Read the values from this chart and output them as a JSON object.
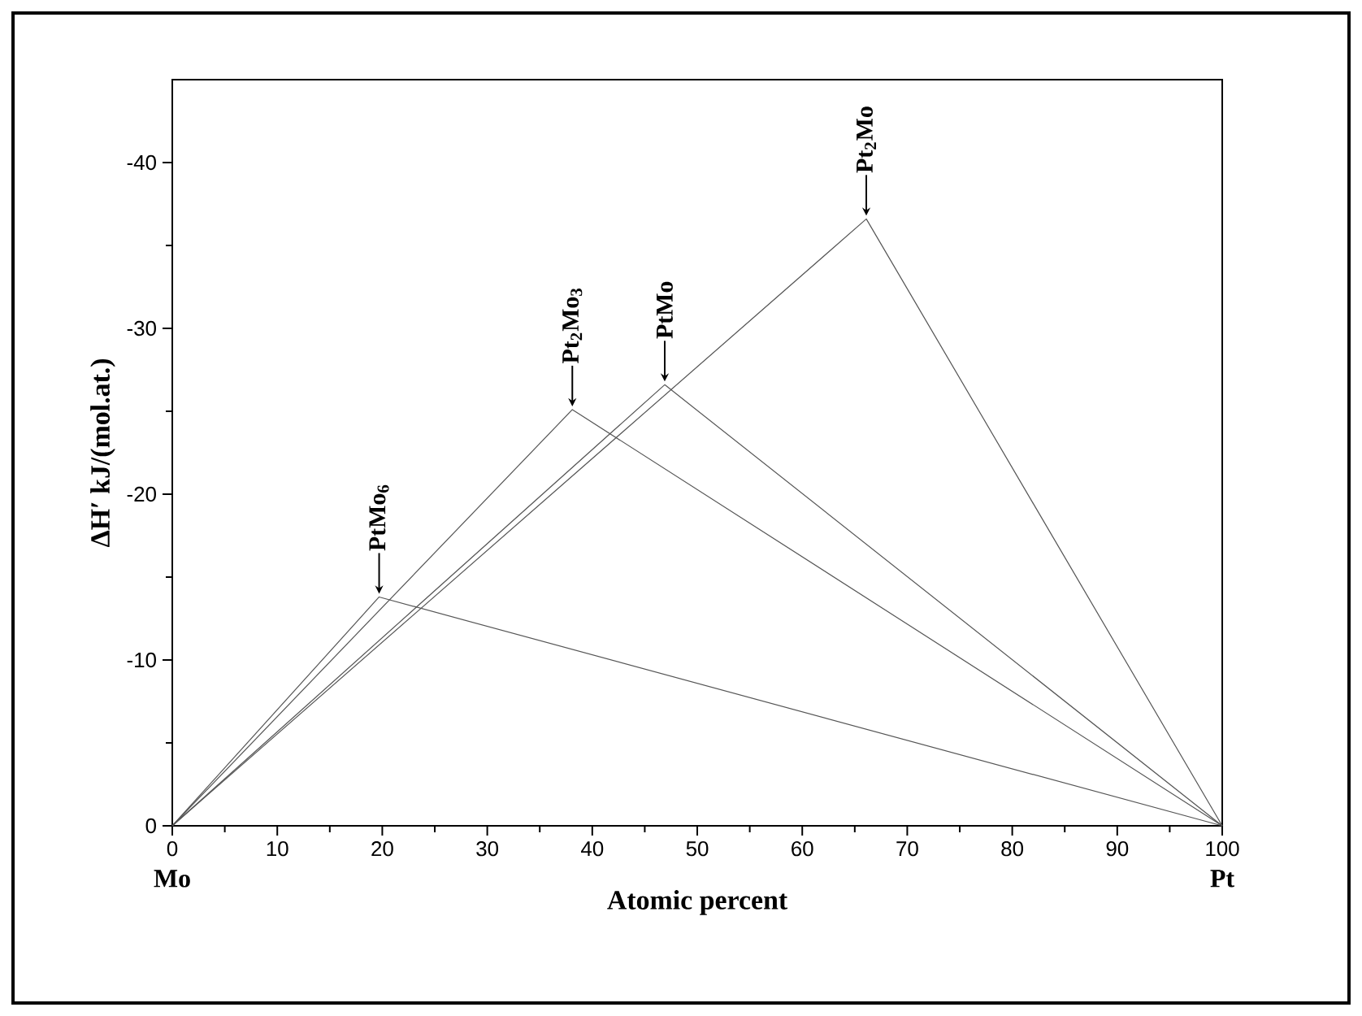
{
  "chart_data": {
    "type": "line",
    "xlabel": "Atomic percent",
    "ylabel": "ΔH′ kJ/(mol.at.)",
    "xlim": [
      0,
      100
    ],
    "xticks": [
      0,
      10,
      20,
      30,
      40,
      50,
      60,
      70,
      80,
      90,
      100
    ],
    "ylim": [
      0,
      -45
    ],
    "yticks": [
      0,
      -10,
      -20,
      -30,
      -40
    ],
    "marker": "none",
    "line_style": "solid",
    "series": [
      {
        "color": "#555555",
        "x": [
          0,
          19.7,
          100
        ],
        "values": [
          0,
          -13.8,
          0
        ]
      },
      {
        "color": "#555555",
        "x": [
          0,
          38.1,
          100
        ],
        "values": [
          0,
          -25.1,
          0
        ]
      },
      {
        "color": "#555555",
        "x": [
          0,
          46.9,
          100
        ],
        "values": [
          0,
          -26.6,
          0
        ]
      },
      {
        "color": "#555555",
        "x": [
          0,
          66.1,
          100
        ],
        "values": [
          0,
          -36.6,
          0
        ]
      }
    ],
    "annotations": [
      {
        "text": "PtMo$_{6}$",
        "x": 19.7,
        "y": -13.8
      },
      {
        "text": "Pt$_{2}$Mo$_{3}$",
        "x": 38.1,
        "y": -25.1
      },
      {
        "text": "PtMo",
        "x": 46.9,
        "y": -26.6
      },
      {
        "text": "Pt$_{2}$Mo",
        "x": 66.1,
        "y": -36.6
      },
      "Mo",
      "Pt"
    ]
  }
}
